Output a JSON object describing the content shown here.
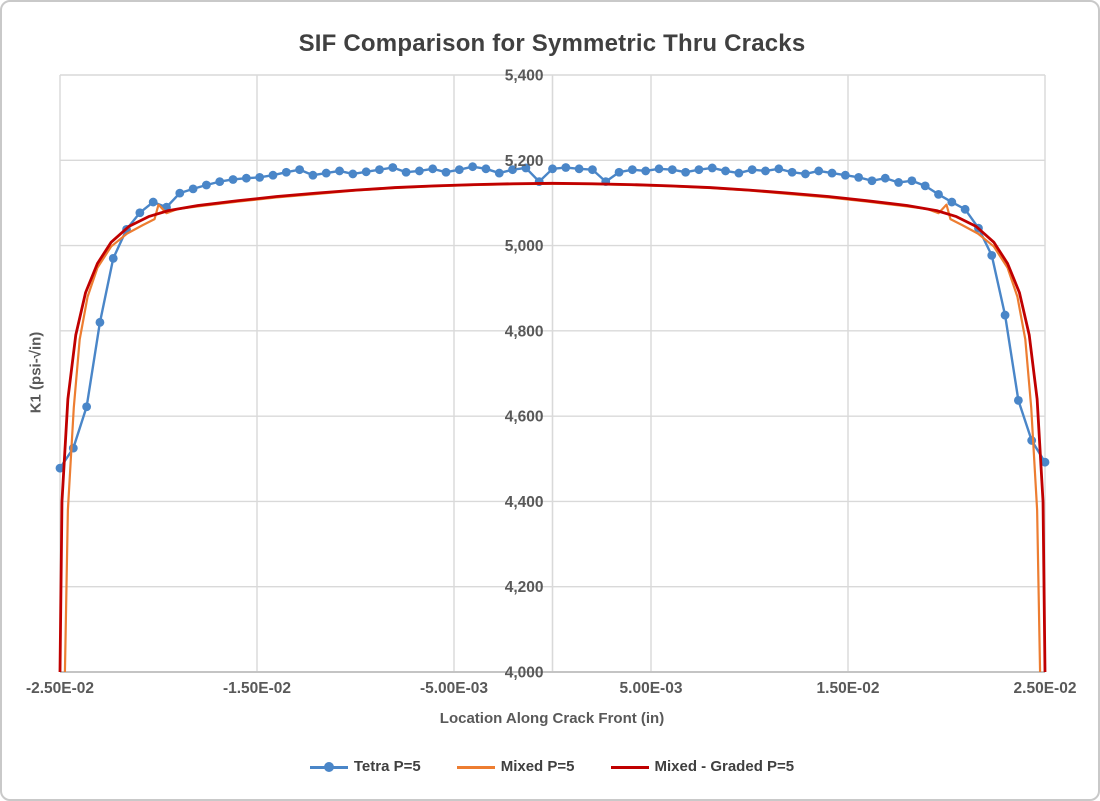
{
  "chart": {
    "title": "SIF Comparison for Symmetric Thru Cracks",
    "x_axis": {
      "title": "Location Along Crack Front (in)"
    },
    "y_axis": {
      "title": "K1 (psi-√in)"
    },
    "legend": [
      {
        "label": "Tetra P=5",
        "color": "#4A86C8",
        "marker": "circle-line"
      },
      {
        "label": "Mixed P=5",
        "color": "#ED7D31",
        "marker": "line"
      },
      {
        "label": "Mixed - Graded P=5",
        "color": "#C00000",
        "marker": "line"
      }
    ]
  },
  "chart_data": {
    "type": "line",
    "title": "SIF Comparison for Symmetric Thru Cracks",
    "xlabel": "Location Along Crack Front (in)",
    "ylabel": "K1 (psi-√in)",
    "xlim": [
      -0.025,
      0.025
    ],
    "ylim": [
      4000,
      5400
    ],
    "grid": true,
    "legend_position": "bottom",
    "axis_cross_x": 0,
    "x_ticks": [
      {
        "value": -0.025,
        "label": "-2.50E-02"
      },
      {
        "value": -0.015,
        "label": "-1.50E-02"
      },
      {
        "value": -0.005,
        "label": "-5.00E-03"
      },
      {
        "value": 0.005,
        "label": "5.00E-03"
      },
      {
        "value": 0.015,
        "label": "1.50E-02"
      },
      {
        "value": 0.025,
        "label": "2.50E-02"
      }
    ],
    "y_ticks": [
      {
        "value": 4000,
        "label": "4,000"
      },
      {
        "value": 4200,
        "label": "4,200"
      },
      {
        "value": 4400,
        "label": "4,400"
      },
      {
        "value": 4600,
        "label": "4,600"
      },
      {
        "value": 4800,
        "label": "4,800"
      },
      {
        "value": 5000,
        "label": "5,000"
      },
      {
        "value": 5200,
        "label": "5,200"
      },
      {
        "value": 5400,
        "label": "5,400"
      }
    ],
    "series": [
      {
        "name": "Tetra P=5",
        "color": "#4A86C8",
        "marker": "circle",
        "x_min": -0.025,
        "x_max": 0.025,
        "count": 75,
        "y": [
          4478,
          4525,
          4622,
          4820,
          4970,
          5038,
          5077,
          5102,
          5090,
          5123,
          5133,
          5142,
          5150,
          5155,
          5158,
          5160,
          5165,
          5172,
          5178,
          5165,
          5170,
          5175,
          5168,
          5173,
          5178,
          5183,
          5172,
          5175,
          5180,
          5172,
          5178,
          5185,
          5180,
          5170,
          5178,
          5182,
          5150,
          5180,
          5183,
          5180,
          5178,
          5150,
          5172,
          5178,
          5175,
          5180,
          5178,
          5172,
          5178,
          5182,
          5175,
          5170,
          5178,
          5175,
          5180,
          5172,
          5168,
          5175,
          5170,
          5165,
          5160,
          5152,
          5158,
          5148,
          5152,
          5140,
          5120,
          5102,
          5085,
          5041,
          4977,
          4837,
          4637,
          4543,
          4492
        ]
      },
      {
        "name": "Mixed P=5",
        "color": "#ED7D31",
        "marker": "none",
        "points": [
          [
            -0.02475,
            4000
          ],
          [
            -0.0246,
            4380
          ],
          [
            -0.0243,
            4620
          ],
          [
            -0.024,
            4780
          ],
          [
            -0.0236,
            4880
          ],
          [
            -0.0231,
            4948
          ],
          [
            -0.0224,
            4998
          ],
          [
            -0.0216,
            5028
          ],
          [
            -0.0208,
            5048
          ],
          [
            -0.0202,
            5062
          ],
          [
            -0.02,
            5096
          ],
          [
            -0.0196,
            5076
          ],
          [
            -0.019,
            5086
          ],
          [
            -0.0178,
            5093
          ],
          [
            -0.016,
            5103
          ],
          [
            -0.014,
            5113
          ],
          [
            -0.012,
            5121
          ],
          [
            -0.01,
            5129
          ],
          [
            -0.008,
            5135
          ],
          [
            -0.006,
            5139
          ],
          [
            -0.004,
            5142
          ],
          [
            -0.002,
            5144
          ],
          [
            0,
            5145
          ],
          [
            0.002,
            5144
          ],
          [
            0.004,
            5142
          ],
          [
            0.006,
            5139
          ],
          [
            0.008,
            5135
          ],
          [
            0.01,
            5129
          ],
          [
            0.012,
            5121
          ],
          [
            0.014,
            5113
          ],
          [
            0.016,
            5103
          ],
          [
            0.0178,
            5093
          ],
          [
            0.019,
            5086
          ],
          [
            0.0196,
            5076
          ],
          [
            0.02,
            5096
          ],
          [
            0.0202,
            5062
          ],
          [
            0.0208,
            5048
          ],
          [
            0.0216,
            5028
          ],
          [
            0.0224,
            4998
          ],
          [
            0.0231,
            4948
          ],
          [
            0.0236,
            4880
          ],
          [
            0.024,
            4780
          ],
          [
            0.0243,
            4620
          ],
          [
            0.0246,
            4380
          ],
          [
            0.02475,
            4000
          ]
        ]
      },
      {
        "name": "Mixed - Graded P=5",
        "color": "#C00000",
        "marker": "none",
        "points": [
          [
            -0.025,
            4000
          ],
          [
            -0.0249,
            4400
          ],
          [
            -0.0246,
            4640
          ],
          [
            -0.0242,
            4790
          ],
          [
            -0.0237,
            4890
          ],
          [
            -0.0231,
            4958
          ],
          [
            -0.0224,
            5008
          ],
          [
            -0.0215,
            5045
          ],
          [
            -0.0205,
            5068
          ],
          [
            -0.0195,
            5082
          ],
          [
            -0.018,
            5094
          ],
          [
            -0.016,
            5105
          ],
          [
            -0.014,
            5115
          ],
          [
            -0.012,
            5123
          ],
          [
            -0.01,
            5130
          ],
          [
            -0.008,
            5136
          ],
          [
            -0.006,
            5140
          ],
          [
            -0.004,
            5143
          ],
          [
            -0.002,
            5145
          ],
          [
            0,
            5146
          ],
          [
            0.002,
            5145
          ],
          [
            0.004,
            5143
          ],
          [
            0.006,
            5140
          ],
          [
            0.008,
            5136
          ],
          [
            0.01,
            5130
          ],
          [
            0.012,
            5123
          ],
          [
            0.014,
            5115
          ],
          [
            0.016,
            5105
          ],
          [
            0.018,
            5094
          ],
          [
            0.0195,
            5082
          ],
          [
            0.0205,
            5068
          ],
          [
            0.0215,
            5045
          ],
          [
            0.0224,
            5008
          ],
          [
            0.0231,
            4958
          ],
          [
            0.0237,
            4890
          ],
          [
            0.0242,
            4790
          ],
          [
            0.0246,
            4640
          ],
          [
            0.0249,
            4400
          ],
          [
            0.025,
            4000
          ]
        ]
      }
    ],
    "colors": {
      "gridline": "#D9D9D9",
      "axis_line": "#BFBFBF",
      "tick_text": "#595959",
      "title_text": "#404040"
    }
  }
}
